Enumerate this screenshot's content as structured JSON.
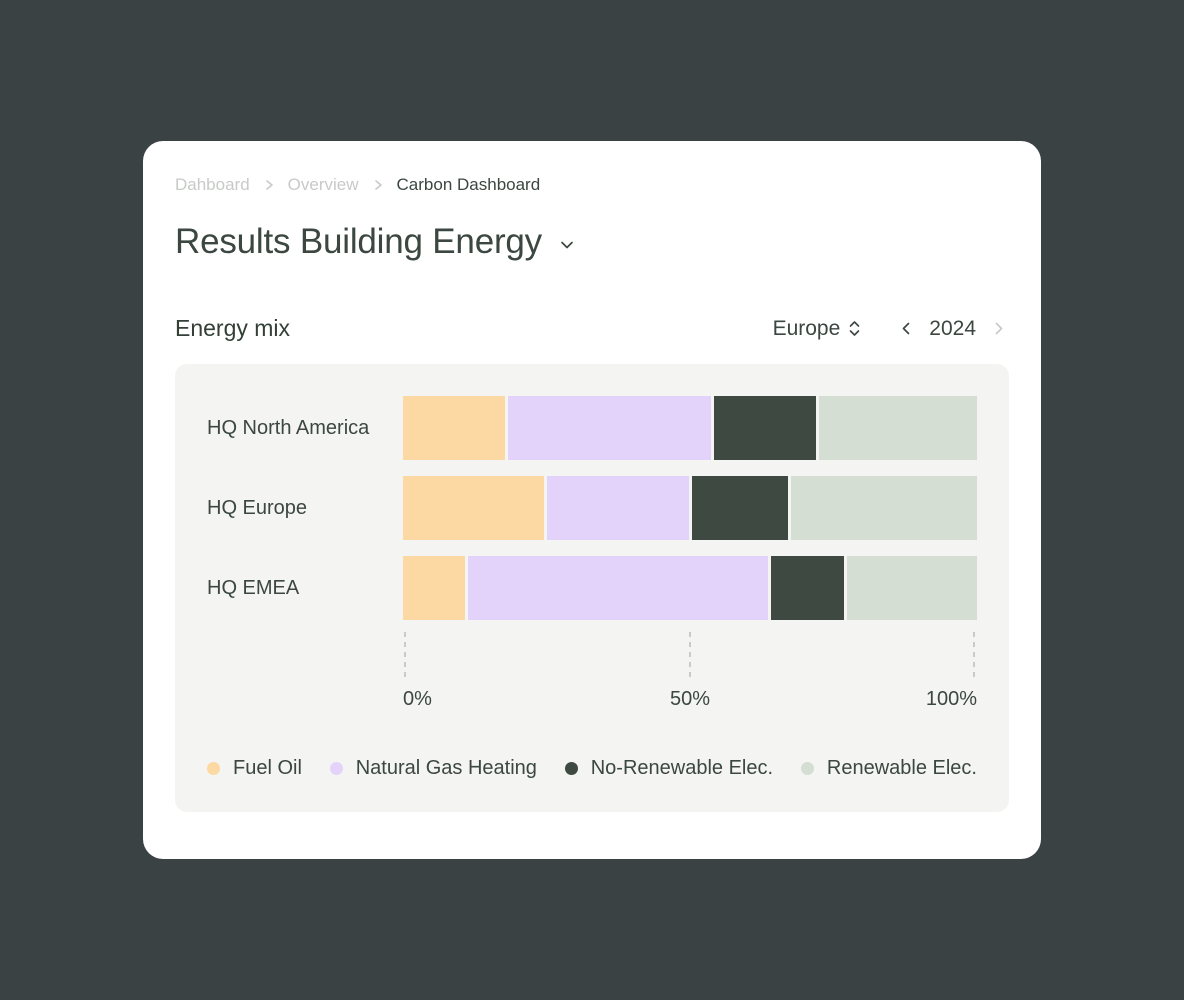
{
  "page": {
    "background_color": "#3A4244",
    "card_color": "#FFFFFF",
    "panel_color": "#F4F4F3"
  },
  "breadcrumb": {
    "items": [
      {
        "label": "Dahboard",
        "current": false
      },
      {
        "label": "Overview",
        "current": false
      },
      {
        "label": "Carbon Dashboard",
        "current": true
      }
    ]
  },
  "header": {
    "title": "Results Building Energy"
  },
  "section": {
    "heading": "Energy mix",
    "region_selector": {
      "value": "Europe"
    },
    "year_pager": {
      "value": "2024",
      "prev_enabled": true,
      "next_enabled": false
    }
  },
  "chart_data": {
    "type": "bar",
    "variant": "stacked-horizontal",
    "unit": "percent",
    "categories": [
      "HQ North America",
      "HQ Europe",
      "HQ EMEA"
    ],
    "series": [
      {
        "name": "Fuel Oil",
        "color": "#FCD9A2",
        "values": [
          18,
          25,
          11
        ]
      },
      {
        "name": "Natural Gas Heating",
        "color": "#E3D3FA",
        "values": [
          36,
          25,
          53
        ]
      },
      {
        "name": "No-Renewable Elec.",
        "color": "#3E4A41",
        "values": [
          18,
          17,
          13
        ]
      },
      {
        "name": "Renewable Elec.",
        "color": "#D5DED2",
        "values": [
          28,
          33,
          23
        ]
      }
    ],
    "x_ticks": [
      "0%",
      "50%",
      "100%"
    ],
    "xlim": [
      0,
      100
    ],
    "grid": "dashed-vertical-ticks",
    "legend_position": "bottom"
  },
  "colors": {
    "text_dark": "#3B4740",
    "text_muted": "#C7CAC7"
  }
}
